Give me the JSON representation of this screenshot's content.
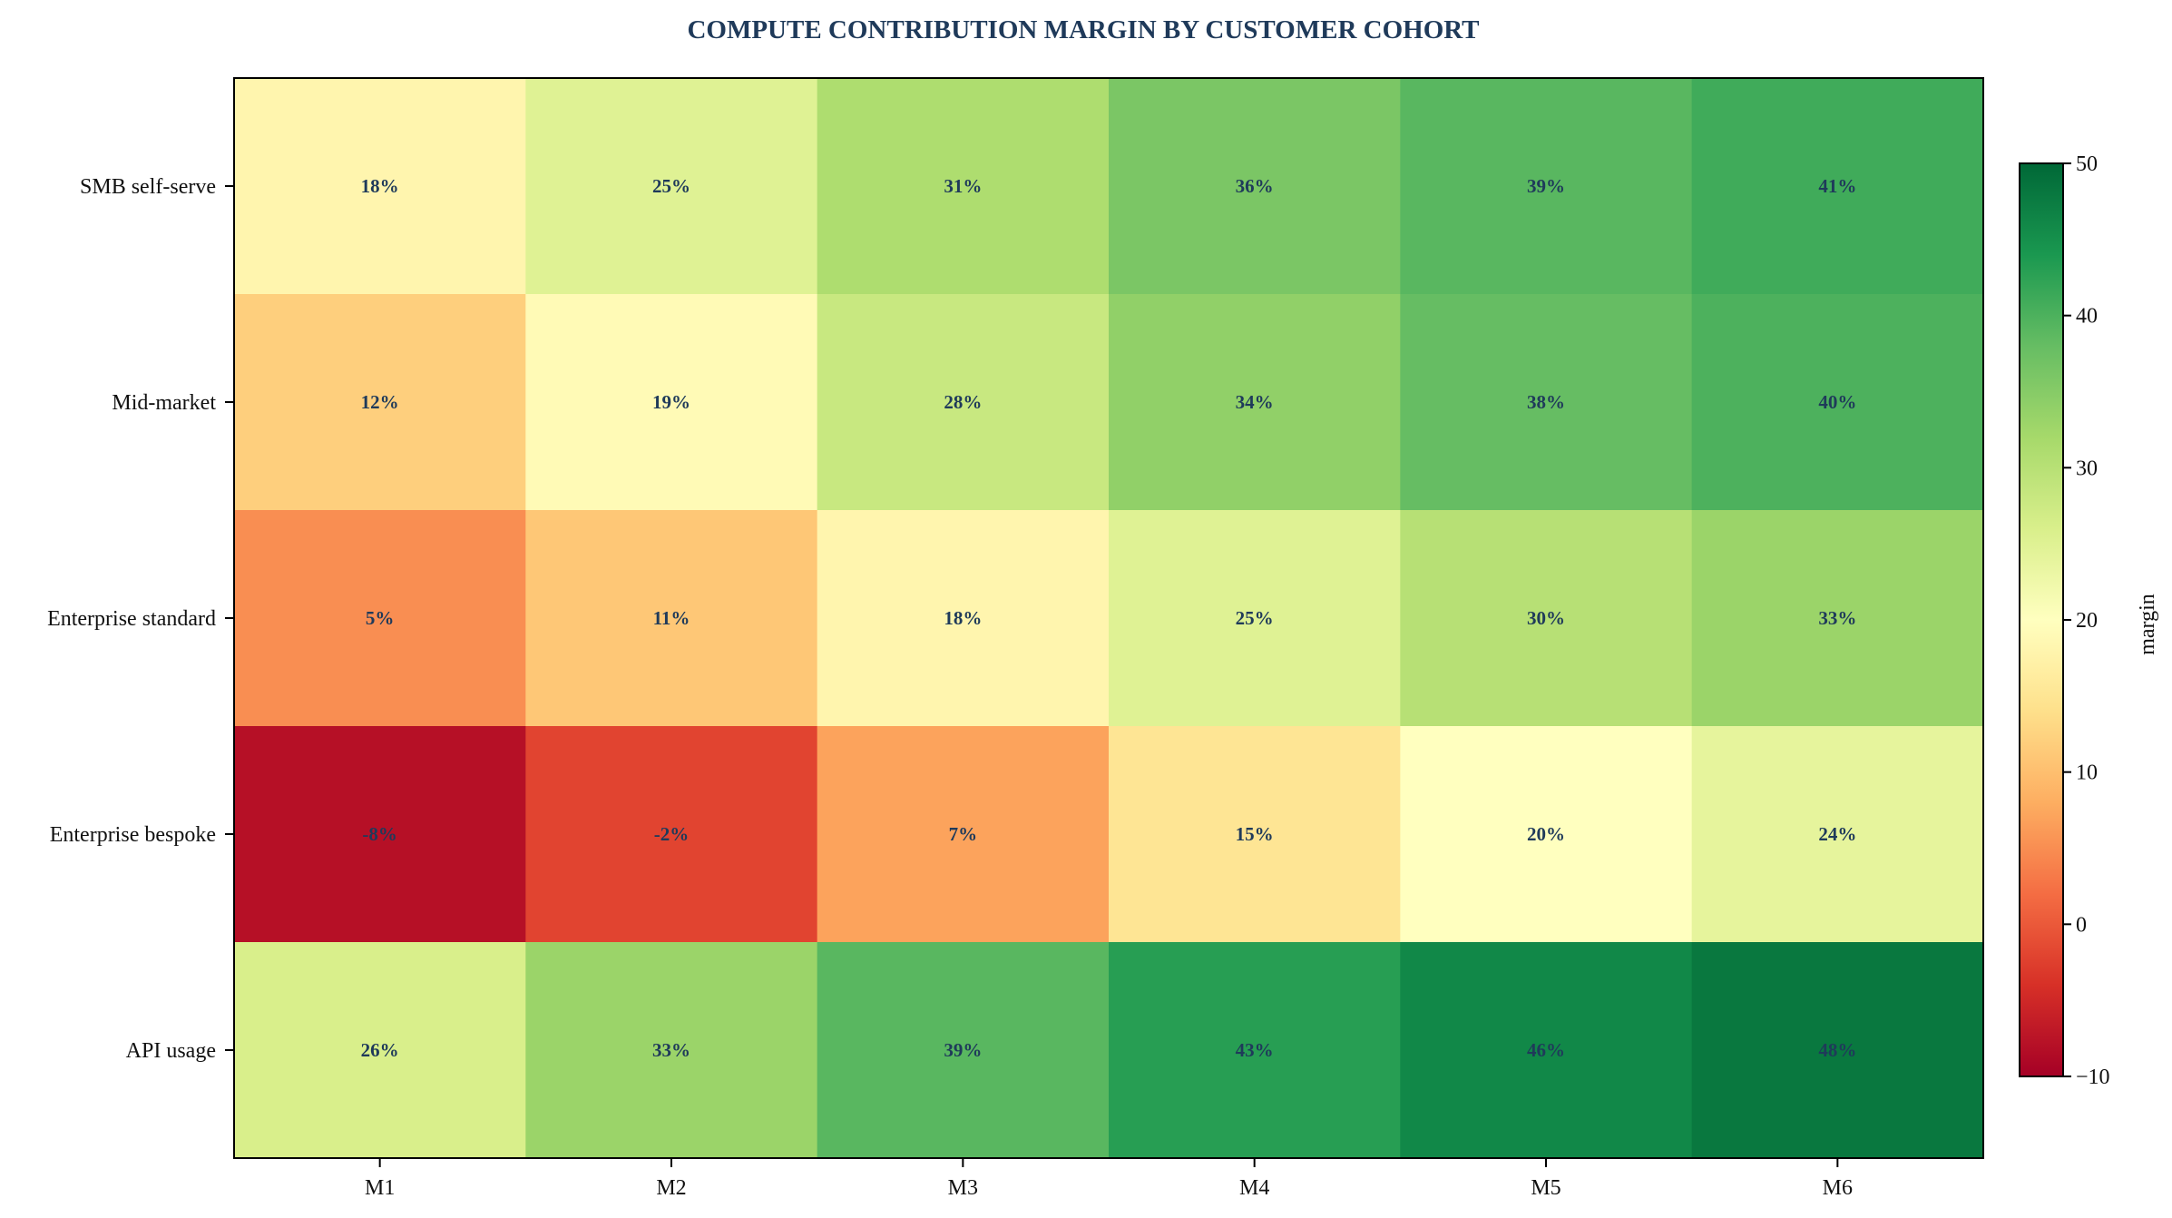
{
  "chart_data": {
    "type": "heatmap",
    "title": "COMPUTE CONTRIBUTION MARGIN BY CUSTOMER COHORT",
    "xlabel": "",
    "ylabel": "",
    "columns": [
      "M1",
      "M2",
      "M3",
      "M4",
      "M5",
      "M6"
    ],
    "rows": [
      "SMB self-serve",
      "Mid-market",
      "Enterprise standard",
      "Enterprise bespoke",
      "API usage"
    ],
    "values": [
      [
        18,
        25,
        31,
        36,
        39,
        41
      ],
      [
        12,
        19,
        28,
        34,
        38,
        40
      ],
      [
        5,
        11,
        18,
        25,
        30,
        33
      ],
      [
        -8,
        -2,
        7,
        15,
        20,
        24
      ],
      [
        26,
        33,
        39,
        43,
        46,
        48
      ]
    ],
    "value_format": "{v}%",
    "colorbar": {
      "label": "margin",
      "range": [
        -10,
        50
      ],
      "ticks": [
        -10,
        0,
        10,
        20,
        30,
        40,
        50
      ],
      "colormap": "RdYlGn"
    },
    "grid": false
  },
  "colors": {
    "title": "#1f3a5a",
    "cell_label": "#1f3a5a",
    "axis": "#000000"
  }
}
